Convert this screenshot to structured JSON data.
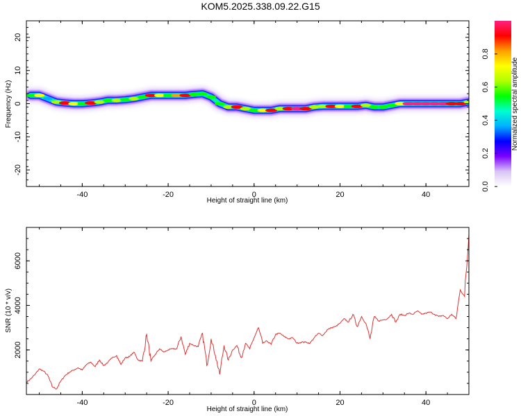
{
  "title": "KOM5.2025.338.09.22.G15",
  "chart_data": [
    {
      "type": "heatmap",
      "xlabel": "Height of straight line (km)",
      "ylabel": "Frequency (Hz)",
      "xlim": [
        -53,
        50
      ],
      "ylim": [
        -25,
        25
      ],
      "xticks": [
        -40,
        -20,
        0,
        20,
        40
      ],
      "yticks": [
        -20,
        -10,
        0,
        10,
        20
      ],
      "colorbar": {
        "label": "Normalized spectral amplitude",
        "range": [
          0,
          1
        ],
        "ticks": [
          0.0,
          0.2,
          0.4,
          0.6,
          0.8
        ],
        "tick_labels": [
          "0.0",
          "0.2",
          "0.4",
          "0.6",
          "0.8"
        ],
        "colors": [
          "#ffffff",
          "#d9c4f5",
          "#7b00ff",
          "#0000ff",
          "#00b0ff",
          "#00ffd0",
          "#00ff00",
          "#b0ff00",
          "#ffff00",
          "#ffa000",
          "#ff0000",
          "#ff2080"
        ]
      },
      "ridge": [
        {
          "x": -52,
          "y": 2.5,
          "a": 0.55
        },
        {
          "x": -50,
          "y": 2.5,
          "a": 0.7
        },
        {
          "x": -48,
          "y": 1.5,
          "a": 0.4
        },
        {
          "x": -46,
          "y": 0.5,
          "a": 0.6
        },
        {
          "x": -44,
          "y": 0.2,
          "a": 0.95
        },
        {
          "x": -42,
          "y": 0.0,
          "a": 0.7
        },
        {
          "x": -40,
          "y": 0.0,
          "a": 0.5
        },
        {
          "x": -38,
          "y": 0.2,
          "a": 0.95
        },
        {
          "x": -36,
          "y": 0.5,
          "a": 0.6
        },
        {
          "x": -34,
          "y": 1.0,
          "a": 0.55
        },
        {
          "x": -32,
          "y": 1.0,
          "a": 0.6
        },
        {
          "x": -30,
          "y": 1.2,
          "a": 0.55
        },
        {
          "x": -28,
          "y": 1.5,
          "a": 0.6
        },
        {
          "x": -26,
          "y": 2.0,
          "a": 0.5
        },
        {
          "x": -24,
          "y": 2.5,
          "a": 0.95
        },
        {
          "x": -22,
          "y": 2.5,
          "a": 0.7
        },
        {
          "x": -20,
          "y": 2.5,
          "a": 0.55
        },
        {
          "x": -18,
          "y": 2.5,
          "a": 0.85
        },
        {
          "x": -16,
          "y": 2.5,
          "a": 0.9
        },
        {
          "x": -14,
          "y": 2.8,
          "a": 0.55
        },
        {
          "x": -12,
          "y": 3.0,
          "a": 0.5
        },
        {
          "x": -10,
          "y": 2.0,
          "a": 0.5
        },
        {
          "x": -8,
          "y": 0.0,
          "a": 0.55
        },
        {
          "x": -6,
          "y": -1.0,
          "a": 0.6
        },
        {
          "x": -4,
          "y": -1.0,
          "a": 0.9
        },
        {
          "x": -2,
          "y": -1.5,
          "a": 0.65
        },
        {
          "x": 0,
          "y": -2.0,
          "a": 0.55
        },
        {
          "x": 2,
          "y": -2.0,
          "a": 0.7
        },
        {
          "x": 4,
          "y": -2.0,
          "a": 0.9
        },
        {
          "x": 6,
          "y": -1.5,
          "a": 0.6
        },
        {
          "x": 8,
          "y": -1.5,
          "a": 0.95
        },
        {
          "x": 10,
          "y": -1.5,
          "a": 1.0
        },
        {
          "x": 12,
          "y": -1.5,
          "a": 0.95
        },
        {
          "x": 14,
          "y": -1.0,
          "a": 0.6
        },
        {
          "x": 16,
          "y": -0.8,
          "a": 0.65
        },
        {
          "x": 18,
          "y": -0.8,
          "a": 0.95
        },
        {
          "x": 20,
          "y": -0.8,
          "a": 0.7
        },
        {
          "x": 22,
          "y": -0.8,
          "a": 0.55
        },
        {
          "x": 24,
          "y": -0.8,
          "a": 0.9
        },
        {
          "x": 26,
          "y": -0.5,
          "a": 0.6
        },
        {
          "x": 28,
          "y": -1.0,
          "a": 0.55
        },
        {
          "x": 30,
          "y": -1.0,
          "a": 0.5
        },
        {
          "x": 32,
          "y": -0.5,
          "a": 0.55
        },
        {
          "x": 34,
          "y": 0.0,
          "a": 0.7
        },
        {
          "x": 36,
          "y": 0.0,
          "a": 1.0
        },
        {
          "x": 38,
          "y": 0.0,
          "a": 1.0
        },
        {
          "x": 40,
          "y": 0.0,
          "a": 1.0
        },
        {
          "x": 42,
          "y": 0.0,
          "a": 1.0
        },
        {
          "x": 44,
          "y": 0.0,
          "a": 1.0
        },
        {
          "x": 46,
          "y": 0.0,
          "a": 0.95
        },
        {
          "x": 48,
          "y": 0.0,
          "a": 0.9
        },
        {
          "x": 50,
          "y": 0.5,
          "a": 0.6
        }
      ]
    },
    {
      "type": "line",
      "xlabel": "Height of straight line (km)",
      "ylabel": "SNR (10 * v/v)",
      "xlim": [
        -53,
        50
      ],
      "ylim": [
        0,
        7500
      ],
      "xticks": [
        -40,
        -20,
        0,
        20,
        40
      ],
      "yticks": [
        2000,
        4000,
        6000
      ],
      "color": "#e03030",
      "x": [
        -53,
        -52,
        -51,
        -50,
        -49,
        -48,
        -47,
        -46,
        -45,
        -44,
        -43,
        -42,
        -41,
        -40,
        -39,
        -38,
        -37,
        -36,
        -35,
        -34,
        -33,
        -32,
        -31,
        -30,
        -29,
        -28,
        -27,
        -26,
        -25,
        -24,
        -23,
        -22,
        -21,
        -20,
        -19,
        -18,
        -17,
        -16,
        -15,
        -14,
        -13,
        -12,
        -11,
        -10,
        -9,
        -8,
        -7,
        -6,
        -5,
        -4,
        -3,
        -2,
        -1,
        0,
        1,
        2,
        3,
        4,
        5,
        6,
        7,
        8,
        9,
        10,
        11,
        12,
        13,
        14,
        15,
        16,
        17,
        18,
        19,
        20,
        21,
        22,
        23,
        24,
        25,
        26,
        27,
        28,
        29,
        30,
        31,
        32,
        33,
        34,
        35,
        36,
        37,
        38,
        39,
        40,
        41,
        42,
        43,
        44,
        45,
        46,
        47,
        48,
        49,
        50
      ],
      "values": [
        550,
        700,
        900,
        1150,
        1050,
        850,
        350,
        250,
        600,
        850,
        1000,
        1100,
        1200,
        1100,
        1350,
        1450,
        1250,
        1550,
        1300,
        1450,
        1650,
        1750,
        1350,
        1650,
        1700,
        1900,
        1550,
        1500,
        2700,
        1500,
        1800,
        2050,
        1900,
        2000,
        2050,
        2050,
        2600,
        1800,
        2300,
        2200,
        2150,
        2750,
        1300,
        2500,
        1750,
        900,
        2200,
        1550,
        2000,
        2200,
        1650,
        2300,
        2050,
        2550,
        3000,
        2300,
        2400,
        2250,
        2700,
        2750,
        2600,
        2500,
        2550,
        2300,
        2350,
        2350,
        2300,
        2550,
        2750,
        2650,
        2900,
        3000,
        3050,
        3200,
        3400,
        3250,
        3600,
        3050,
        3500,
        3200,
        2500,
        3500,
        3300,
        3350,
        3400,
        3600,
        3250,
        3600,
        3550,
        3650,
        3600,
        3750,
        3600,
        3650,
        3700,
        3600,
        3500,
        3550,
        3400,
        3600,
        3400,
        4700,
        4400,
        7200
      ]
    }
  ]
}
